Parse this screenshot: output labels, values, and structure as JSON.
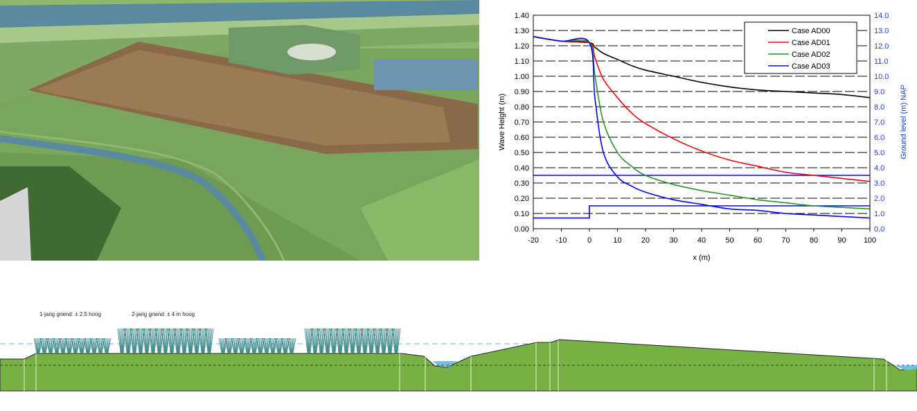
{
  "section": {
    "label_1": "1-jarig griend: ± 2.5 hoog",
    "label_2": "2-jarig griend: ± 4 m hoog"
  },
  "chart_data": {
    "type": "line",
    "title": "",
    "xlabel": "x (m)",
    "ylabel": "Wave Height (m)",
    "y2label": "Ground level (m) NAP",
    "xlim": [
      -20,
      100
    ],
    "ylim": [
      0,
      1.4
    ],
    "y2lim": [
      0,
      14
    ],
    "xticks": [
      "-20",
      "-10",
      "0",
      "10",
      "20",
      "30",
      "40",
      "50",
      "60",
      "70",
      "80",
      "90",
      "100"
    ],
    "yticks": [
      "0.00",
      "0.10",
      "0.20",
      "0.30",
      "0.40",
      "0.50",
      "0.60",
      "0.70",
      "0.80",
      "0.90",
      "1.00",
      "1.10",
      "1.20",
      "1.30",
      "1.40"
    ],
    "y2ticks": [
      "0.0",
      "1.0",
      "2.0",
      "3.0",
      "4.0",
      "5.0",
      "6.0",
      "7.0",
      "8.0",
      "9.0",
      "10.0",
      "11.0",
      "12.0",
      "13.0",
      "14.0"
    ],
    "grid": true,
    "legend_position": "top-right",
    "x": [
      -20,
      -10,
      0,
      2,
      5,
      10,
      15,
      20,
      30,
      40,
      50,
      60,
      70,
      80,
      90,
      100
    ],
    "series": [
      {
        "name": "Case AD00",
        "color": "#000000",
        "values": [
          1.26,
          1.23,
          1.22,
          1.19,
          1.15,
          1.11,
          1.07,
          1.04,
          1.0,
          0.96,
          0.93,
          0.91,
          0.9,
          0.89,
          0.88,
          0.86
        ]
      },
      {
        "name": "Case AD01",
        "color": "#ff0000",
        "values": [
          1.26,
          1.23,
          1.22,
          1.12,
          0.98,
          0.86,
          0.76,
          0.69,
          0.59,
          0.51,
          0.45,
          0.41,
          0.37,
          0.35,
          0.33,
          0.31
        ]
      },
      {
        "name": "Case AD02",
        "color": "#229922",
        "values": [
          1.26,
          1.23,
          1.22,
          1.0,
          0.7,
          0.5,
          0.41,
          0.35,
          0.29,
          0.25,
          0.22,
          0.19,
          0.17,
          0.15,
          0.14,
          0.13
        ]
      },
      {
        "name": "Case AD03",
        "color": "#0000ff",
        "values": [
          1.26,
          1.23,
          1.22,
          0.85,
          0.5,
          0.34,
          0.28,
          0.24,
          0.19,
          0.16,
          0.13,
          0.12,
          0.1,
          0.09,
          0.08,
          0.07
        ]
      }
    ],
    "ground_level_nap": {
      "color": "#0000ff",
      "x": [
        -20,
        0,
        0,
        100
      ],
      "values": [
        0.7,
        0.7,
        1.5,
        1.5
      ]
    },
    "water_level_nap": {
      "color": "#0000ff",
      "x": [
        -20,
        100
      ],
      "values": [
        3.5,
        3.5
      ]
    }
  }
}
